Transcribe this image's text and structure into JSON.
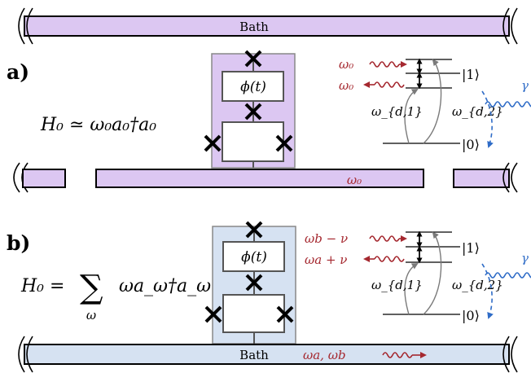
{
  "panel_a": {
    "label": "a)",
    "hamiltonian": "H₀ ≃ ω₀a₀†a₀",
    "top_bath_label": "Bath",
    "waveguide_label": "ω₀",
    "coupler_label": "ϕ(t)",
    "emit_top": "ω₀",
    "emit_bottom": "ω₀",
    "level_excited": "|1⟩",
    "level_ground": "|0⟩",
    "drive_1": "ω_{d,1}",
    "drive_2": "ω_{d,2}",
    "decay": "γ"
  },
  "panel_b": {
    "label": "b)",
    "hamiltonian_lhs": "H₀ =",
    "hamiltonian_sum": "∑",
    "hamiltonian_sum_index": "ω",
    "hamiltonian_rhs": "ωa_ω†a_ω",
    "bath_label": "Bath",
    "bath_modes": "ωa, ωb",
    "coupler_label": "ϕ(t)",
    "emit_top": "ωb − ν",
    "emit_bottom": "ωa + ν",
    "level_excited": "|1⟩",
    "level_ground": "|0⟩",
    "drive_1": "ω_{d,1}",
    "drive_2": "ω_{d,2}",
    "decay": "γ"
  },
  "colors": {
    "purple_fill": "#dcc7f2",
    "blue_fill": "#d6e2f2",
    "dark_red": "#a5282f",
    "blue": "#2f6cc7",
    "gray": "#7a7a7a"
  }
}
